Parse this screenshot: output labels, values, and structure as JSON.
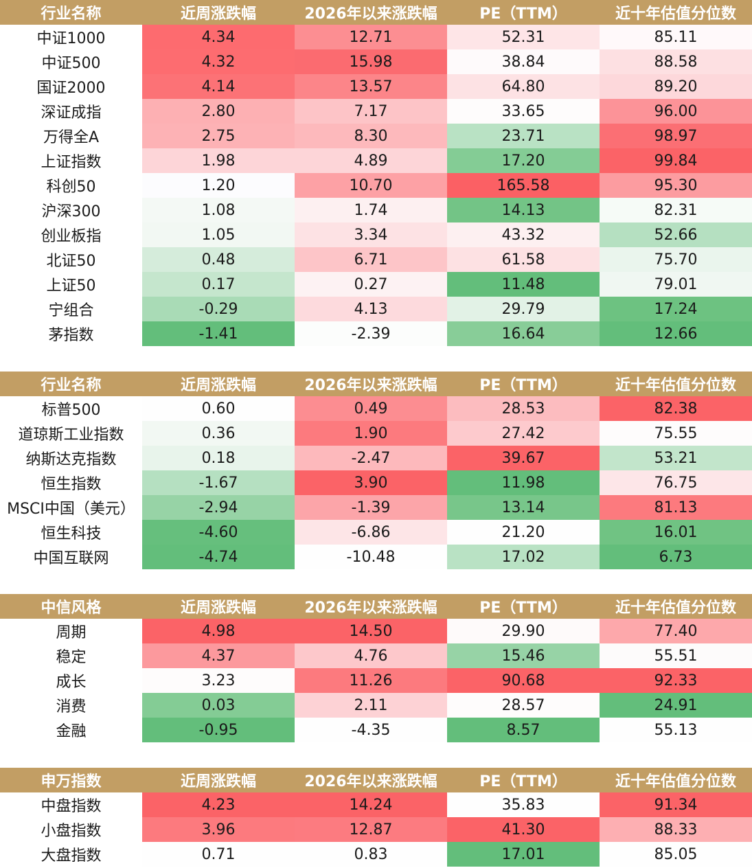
{
  "columns": [
    "近周涨跌幅",
    "2026年以来涨跌幅",
    "PE（TTM）",
    "近十年估值分位数"
  ],
  "tables": [
    {
      "id": "t1",
      "name_header": "行业名称",
      "rows": [
        {
          "name": "中证1000",
          "cells": [
            {
              "value": "4.34",
              "color": "#fd6b6f"
            },
            {
              "value": "12.71",
              "color": "#fc8e92"
            },
            {
              "value": "52.31",
              "color": "#fee5e7"
            },
            {
              "value": "85.11",
              "color": "#fff9fa"
            }
          ]
        },
        {
          "name": "中证500",
          "cells": [
            {
              "value": "4.32",
              "color": "#fd6c70"
            },
            {
              "value": "15.98",
              "color": "#fb6b70"
            },
            {
              "value": "38.84",
              "color": "#fefafb"
            },
            {
              "value": "88.58",
              "color": "#fde0e2"
            }
          ]
        },
        {
          "name": "国证2000",
          "cells": [
            {
              "value": "4.14",
              "color": "#fc7276"
            },
            {
              "value": "13.57",
              "color": "#fc8589"
            },
            {
              "value": "64.80",
              "color": "#fde2e4"
            },
            {
              "value": "89.20",
              "color": "#fdd8db"
            }
          ]
        },
        {
          "name": "深证成指",
          "cells": [
            {
              "value": "2.80",
              "color": "#fdb0b3"
            },
            {
              "value": "7.17",
              "color": "#fdc4c7"
            },
            {
              "value": "33.65",
              "color": "#fefcfc"
            },
            {
              "value": "96.00",
              "color": "#fc9398"
            }
          ]
        },
        {
          "name": "万得全A",
          "cells": [
            {
              "value": "2.75",
              "color": "#fdb2b5"
            },
            {
              "value": "8.30",
              "color": "#fdb9bc"
            },
            {
              "value": "23.71",
              "color": "#b9e2c4"
            },
            {
              "value": "98.97",
              "color": "#fb6f74"
            }
          ]
        },
        {
          "name": "上证指数",
          "cells": [
            {
              "value": "1.98",
              "color": "#fdd5d8"
            },
            {
              "value": "4.89",
              "color": "#fdd5d8"
            },
            {
              "value": "17.20",
              "color": "#84cc95"
            },
            {
              "value": "99.84",
              "color": "#fb6367"
            }
          ]
        },
        {
          "name": "科创50",
          "cells": [
            {
              "value": "1.20",
              "color": "#fcfcfe"
            },
            {
              "value": "10.70",
              "color": "#fda1a5"
            },
            {
              "value": "165.58",
              "color": "#fb6064"
            },
            {
              "value": "95.30",
              "color": "#fc9ca0"
            }
          ]
        },
        {
          "name": "沪深300",
          "cells": [
            {
              "value": "1.08",
              "color": "#f4f9f5"
            },
            {
              "value": "1.74",
              "color": "#fdf0f1"
            },
            {
              "value": "14.13",
              "color": "#73c486"
            },
            {
              "value": "82.31",
              "color": "#f6fbf7"
            }
          ]
        },
        {
          "name": "创业板指",
          "cells": [
            {
              "value": "1.05",
              "color": "#f2f8f3"
            },
            {
              "value": "3.34",
              "color": "#fde2e4"
            },
            {
              "value": "43.32",
              "color": "#fdf0f1"
            },
            {
              "value": "52.66",
              "color": "#b5e0c1"
            }
          ]
        },
        {
          "name": "北证50",
          "cells": [
            {
              "value": "0.48",
              "color": "#d5ecdb"
            },
            {
              "value": "6.71",
              "color": "#fdc5c8"
            },
            {
              "value": "61.58",
              "color": "#fde1e3"
            },
            {
              "value": "75.70",
              "color": "#eaf5ed"
            }
          ]
        },
        {
          "name": "上证50",
          "cells": [
            {
              "value": "0.17",
              "color": "#c5e6cd"
            },
            {
              "value": "0.27",
              "color": "#fdf2f3"
            },
            {
              "value": "11.48",
              "color": "#63be7b"
            },
            {
              "value": "79.01",
              "color": "#f0f7f2"
            }
          ]
        },
        {
          "name": "宁组合",
          "cells": [
            {
              "value": "-0.29",
              "color": "#a9dbb6"
            },
            {
              "value": "4.13",
              "color": "#fddadd"
            },
            {
              "value": "29.79",
              "color": "#e2f2e6"
            },
            {
              "value": "17.24",
              "color": "#6dc281"
            }
          ]
        },
        {
          "name": "茅指数",
          "cells": [
            {
              "value": "-1.41",
              "color": "#63be7b"
            },
            {
              "value": "-2.39",
              "color": "#fcfdfc"
            },
            {
              "value": "16.64",
              "color": "#88cd98"
            },
            {
              "value": "12.66",
              "color": "#63be7b"
            }
          ]
        }
      ]
    },
    {
      "id": "t2",
      "name_header": "行业名称",
      "rows": [
        {
          "name": "标普500",
          "cells": [
            {
              "value": "0.60",
              "color": "#fefefe"
            },
            {
              "value": "0.49",
              "color": "#fc8d91"
            },
            {
              "value": "28.53",
              "color": "#fcbcbf"
            },
            {
              "value": "82.38",
              "color": "#fb6367"
            }
          ]
        },
        {
          "name": "道琼斯工业指数",
          "cells": [
            {
              "value": "0.36",
              "color": "#f2f8f3"
            },
            {
              "value": "1.90",
              "color": "#fc7a7e"
            },
            {
              "value": "27.42",
              "color": "#fdcacd"
            },
            {
              "value": "75.55",
              "color": "#fefcfc"
            }
          ]
        },
        {
          "name": "纳斯达克指数",
          "cells": [
            {
              "value": "0.18",
              "color": "#e8f4eb"
            },
            {
              "value": "-2.47",
              "color": "#fdb9bc"
            },
            {
              "value": "39.67",
              "color": "#fb6367"
            },
            {
              "value": "53.21",
              "color": "#c2e5cb"
            }
          ]
        },
        {
          "name": "恒生指数",
          "cells": [
            {
              "value": "-1.67",
              "color": "#b5e0c1"
            },
            {
              "value": "3.90",
              "color": "#fb6367"
            },
            {
              "value": "11.98",
              "color": "#63be7b"
            },
            {
              "value": "76.75",
              "color": "#fde6e8"
            }
          ]
        },
        {
          "name": "MSCI中国（美元）",
          "cells": [
            {
              "value": "-2.94",
              "color": "#97d3a6"
            },
            {
              "value": "-1.39",
              "color": "#fca5a9"
            },
            {
              "value": "13.14",
              "color": "#78c68a"
            },
            {
              "value": "81.13",
              "color": "#fc7a7e"
            }
          ]
        },
        {
          "name": "恒生科技",
          "cells": [
            {
              "value": "-4.60",
              "color": "#66bf7d"
            },
            {
              "value": "-6.86",
              "color": "#fde5e7"
            },
            {
              "value": "21.20",
              "color": "#fefefe"
            },
            {
              "value": "16.01",
              "color": "#70c383"
            }
          ]
        },
        {
          "name": "中国互联网",
          "cells": [
            {
              "value": "-4.74",
              "color": "#63be7b"
            },
            {
              "value": "-10.48",
              "color": "#fefefe"
            },
            {
              "value": "17.02",
              "color": "#b9e2c4"
            },
            {
              "value": "6.73",
              "color": "#63be7b"
            }
          ]
        }
      ]
    },
    {
      "id": "t3",
      "name_header": "中信风格",
      "rows": [
        {
          "name": "周期",
          "cells": [
            {
              "value": "4.98",
              "color": "#fb6367"
            },
            {
              "value": "14.50",
              "color": "#fb6367"
            },
            {
              "value": "29.90",
              "color": "#fefafa"
            },
            {
              "value": "77.40",
              "color": "#fda8ab"
            }
          ]
        },
        {
          "name": "稳定",
          "cells": [
            {
              "value": "4.37",
              "color": "#fc999d"
            },
            {
              "value": "4.76",
              "color": "#fdc8cb"
            },
            {
              "value": "15.46",
              "color": "#97d3a6"
            },
            {
              "value": "55.51",
              "color": "#fdfbfb"
            }
          ]
        },
        {
          "name": "成长",
          "cells": [
            {
              "value": "3.23",
              "color": "#fefcfc"
            },
            {
              "value": "11.26",
              "color": "#fc7a7e"
            },
            {
              "value": "90.68",
              "color": "#fb6367"
            },
            {
              "value": "92.33",
              "color": "#fb6367"
            }
          ]
        },
        {
          "name": "消费",
          "cells": [
            {
              "value": "0.03",
              "color": "#84cc95"
            },
            {
              "value": "2.11",
              "color": "#fdd2d5"
            },
            {
              "value": "28.57",
              "color": "#fefcfc"
            },
            {
              "value": "24.91",
              "color": "#63be7b"
            }
          ]
        },
        {
          "name": "金融",
          "cells": [
            {
              "value": "-0.95",
              "color": "#63be7b"
            },
            {
              "value": "-4.35",
              "color": "#fefefe"
            },
            {
              "value": "8.57",
              "color": "#63be7b"
            },
            {
              "value": "55.13",
              "color": "#fefefe"
            }
          ]
        }
      ]
    },
    {
      "id": "t4",
      "name_header": "申万指数",
      "rows": [
        {
          "name": "中盘指数",
          "cells": [
            {
              "value": "4.23",
              "color": "#fb6367"
            },
            {
              "value": "14.24",
              "color": "#fb6367"
            },
            {
              "value": "35.83",
              "color": "#fefefe"
            },
            {
              "value": "91.34",
              "color": "#fb6367"
            }
          ]
        },
        {
          "name": "小盘指数",
          "cells": [
            {
              "value": "3.96",
              "color": "#fc7a7e"
            },
            {
              "value": "12.87",
              "color": "#fc7b80"
            },
            {
              "value": "41.30",
              "color": "#fb6367"
            },
            {
              "value": "88.33",
              "color": "#fdafb2"
            }
          ]
        },
        {
          "name": "大盘指数",
          "cells": [
            {
              "value": "0.71",
              "color": "#fefefe"
            },
            {
              "value": "0.83",
              "color": "#fefefe"
            },
            {
              "value": "17.01",
              "color": "#63be7b"
            },
            {
              "value": "85.05",
              "color": "#fefefe"
            }
          ]
        }
      ]
    }
  ]
}
